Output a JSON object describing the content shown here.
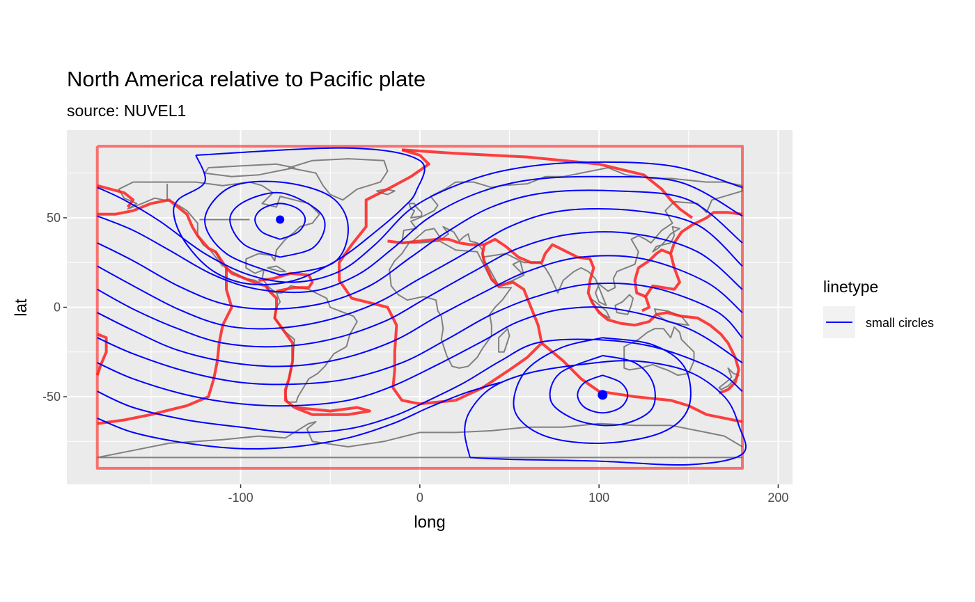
{
  "chart_data": {
    "type": "map",
    "title": "North America relative to Pacific plate",
    "subtitle": "source: NUVEL1",
    "xlabel": "long",
    "ylabel": "lat",
    "xlim": [
      -197,
      208
    ],
    "ylim": [
      -99,
      99
    ],
    "x_ticks": [
      -100,
      0,
      100,
      200
    ],
    "x_tick_labels": [
      "-100",
      "0",
      "100",
      "200"
    ],
    "y_ticks": [
      -50,
      0,
      50
    ],
    "y_tick_labels": [
      "-50",
      "0",
      "50"
    ],
    "x_minor_ticks": [
      -150,
      -50,
      50,
      150
    ],
    "y_minor_ticks": [
      -75,
      -25,
      25,
      75
    ],
    "grid": true,
    "legend": {
      "title": "linetype",
      "position": "right",
      "entries": [
        {
          "label": "small circles",
          "color": "#0000ff"
        }
      ]
    },
    "colors": {
      "panel_background": "#ebebeb",
      "grid": "#ffffff",
      "coastline": "#808080",
      "plate_boundary": "#ff2020",
      "small_circle": "#0000ff",
      "pole": "#0000ff"
    },
    "poles": [
      {
        "name": "euler-pole-north",
        "long": -78,
        "lat": 49
      },
      {
        "name": "euler-pole-south",
        "long": 102,
        "lat": -49
      }
    ]
  }
}
